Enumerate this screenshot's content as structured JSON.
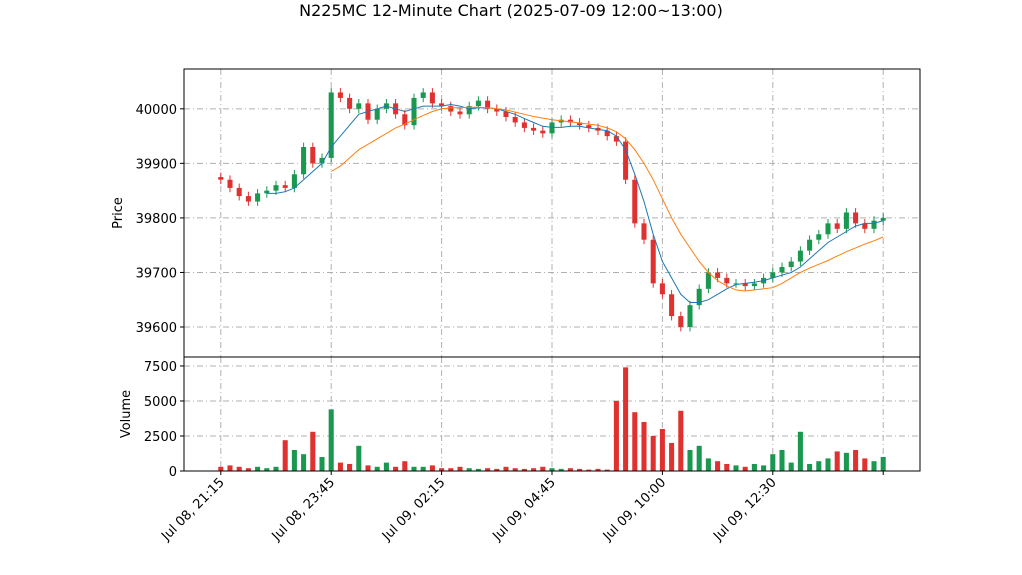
{
  "chart_data": {
    "type": "candlestick",
    "title": "N225MC 12-Minute Chart (2025-07-09 12:00~13:00)",
    "ylabel": "Price",
    "volume_label": "Volume",
    "up_color": "#1a9850",
    "down_color": "#e03131",
    "grid": true,
    "xlim": [
      -4,
      76
    ],
    "xticks": [
      {
        "value": 0,
        "label": "Jul 08, 21:15"
      },
      {
        "value": 12,
        "label": "Jul 08, 23:45"
      },
      {
        "value": 24,
        "label": "Jul 09, 02:15"
      },
      {
        "value": 36,
        "label": "Jul 09, 04:45"
      },
      {
        "value": 48,
        "label": "Jul 09, 10:00"
      },
      {
        "value": 60,
        "label": "Jul 09, 12:30"
      },
      {
        "value": 72,
        "label": null
      }
    ],
    "ylim": [
      39545,
      40073
    ],
    "yticks": [
      39600,
      39700,
      39800,
      39900,
      40000
    ],
    "volume_ylim": [
      0,
      8140
    ],
    "volume_yticks": [
      0,
      2500,
      5000,
      7500
    ],
    "open": [
      39875,
      39870,
      39855,
      39840,
      39830,
      39845,
      39850,
      39860,
      39855,
      39880,
      39930,
      39900,
      39910,
      40030,
      40020,
      40000,
      40010,
      39980,
      40000,
      40010,
      39990,
      39970,
      40020,
      40030,
      40010,
      40005,
      39995,
      39990,
      40005,
      40015,
      40000,
      39995,
      39985,
      39975,
      39965,
      39960,
      39955,
      39975,
      39980,
      39975,
      39970,
      39965,
      39960,
      39950,
      39940,
      39870,
      39790,
      39760,
      39680,
      39660,
      39620,
      39600,
      39640,
      39670,
      39700,
      39690,
      39680,
      39680,
      39675,
      39680,
      39690,
      39700,
      39710,
      39720,
      39740,
      39760,
      39770,
      39790,
      39780,
      39810,
      39790,
      39780,
      39795
    ],
    "high": [
      39883,
      39878,
      39863,
      39848,
      39853,
      39858,
      39868,
      39868,
      39888,
      39938,
      39938,
      39918,
      40038,
      40038,
      40028,
      40018,
      40018,
      40008,
      40018,
      40018,
      39998,
      40028,
      40038,
      40038,
      40018,
      40013,
      40003,
      40013,
      40023,
      40023,
      40008,
      40003,
      39993,
      39983,
      39973,
      39968,
      39983,
      39988,
      39988,
      39983,
      39978,
      39973,
      39968,
      39958,
      39948,
      39878,
      39798,
      39768,
      39688,
      39668,
      39628,
      39648,
      39678,
      39708,
      39708,
      39698,
      39688,
      39688,
      39688,
      39698,
      39708,
      39718,
      39728,
      39748,
      39768,
      39778,
      39798,
      39798,
      39818,
      39818,
      39798,
      39803,
      39808
    ],
    "low": [
      39862,
      39847,
      39832,
      39822,
      39822,
      39837,
      39842,
      39847,
      39847,
      39872,
      39892,
      39892,
      39902,
      40012,
      39992,
      39992,
      39972,
      39972,
      39992,
      39982,
      39962,
      39962,
      40012,
      40002,
      39997,
      39987,
      39982,
      39982,
      39997,
      39992,
      39987,
      39977,
      39967,
      39957,
      39952,
      39947,
      39947,
      39967,
      39967,
      39962,
      39957,
      39952,
      39942,
      39932,
      39862,
      39782,
      39752,
      39672,
      39652,
      39612,
      39592,
      39592,
      39632,
      39662,
      39682,
      39672,
      39672,
      39667,
      39667,
      39672,
      39682,
      39692,
      39702,
      39712,
      39732,
      39752,
      39762,
      39772,
      39772,
      39782,
      39772,
      39772,
      39787
    ],
    "close": [
      39870,
      39855,
      39840,
      39830,
      39845,
      39850,
      39860,
      39855,
      39880,
      39930,
      39900,
      39910,
      40030,
      40020,
      40000,
      40010,
      39980,
      40000,
      40010,
      39990,
      39970,
      40020,
      40030,
      40010,
      40005,
      39995,
      39990,
      40005,
      40015,
      40000,
      39995,
      39985,
      39975,
      39965,
      39960,
      39955,
      39975,
      39980,
      39975,
      39970,
      39965,
      39960,
      39950,
      39940,
      39870,
      39790,
      39760,
      39680,
      39660,
      39620,
      39600,
      39640,
      39670,
      39700,
      39690,
      39680,
      39680,
      39675,
      39680,
      39690,
      39700,
      39710,
      39720,
      39740,
      39760,
      39770,
      39790,
      39780,
      39810,
      39790,
      39780,
      39795,
      39800
    ],
    "volume": [
      300,
      400,
      300,
      200,
      300,
      200,
      300,
      2200,
      1500,
      1200,
      2800,
      1000,
      4400,
      600,
      500,
      1800,
      400,
      300,
      600,
      300,
      700,
      300,
      300,
      400,
      200,
      200,
      300,
      200,
      150,
      200,
      150,
      300,
      200,
      150,
      200,
      300,
      200,
      150,
      200,
      150,
      100,
      150,
      100,
      5000,
      7400,
      4200,
      3500,
      2500,
      3000,
      2000,
      4300,
      1500,
      1800,
      900,
      700,
      500,
      400,
      300,
      500,
      400,
      1200,
      1500,
      600,
      2800,
      500,
      700,
      900,
      1400,
      1300,
      1500,
      900,
      700,
      1000
    ],
    "lines": [
      {
        "color": "#1f77b4",
        "values": [
          null,
          null,
          null,
          null,
          null,
          39845,
          39845,
          39848,
          39855,
          39870,
          39885,
          39900,
          39930,
          39950,
          39970,
          39990,
          39995,
          40000,
          40005,
          40000,
          39995,
          40000,
          40005,
          40005,
          40005,
          40008,
          40005,
          40000,
          40002,
          40002,
          40000,
          39995,
          39990,
          39982,
          39975,
          39968,
          39966,
          39966,
          39968,
          39968,
          39965,
          39962,
          39960,
          39950,
          39925,
          39880,
          39830,
          39770,
          39720,
          39690,
          39660,
          39645,
          39645,
          39650,
          39660,
          39670,
          39678,
          39680,
          39682,
          39685,
          39690,
          39695,
          39700,
          39710,
          39725,
          39740,
          39755,
          39765,
          39775,
          39785,
          39790,
          39790,
          39795
        ]
      },
      {
        "color": "#ff7f0e",
        "values": [
          null,
          null,
          null,
          null,
          null,
          null,
          null,
          null,
          null,
          null,
          null,
          null,
          39885,
          39895,
          39910,
          39925,
          39935,
          39945,
          39955,
          39965,
          39972,
          39980,
          39988,
          39995,
          40000,
          40002,
          40002,
          40003,
          40003,
          40002,
          40000,
          39998,
          39994,
          39990,
          39986,
          39983,
          39980,
          39978,
          39976,
          39974,
          39972,
          39970,
          39965,
          39958,
          39945,
          39925,
          39900,
          39870,
          39835,
          39800,
          39770,
          39745,
          39720,
          39700,
          39685,
          39675,
          39668,
          39666,
          39668,
          39670,
          39672,
          39680,
          39690,
          39700,
          39708,
          39715,
          39722,
          39730,
          39738,
          39745,
          39752,
          39758,
          39765
        ]
      }
    ]
  }
}
